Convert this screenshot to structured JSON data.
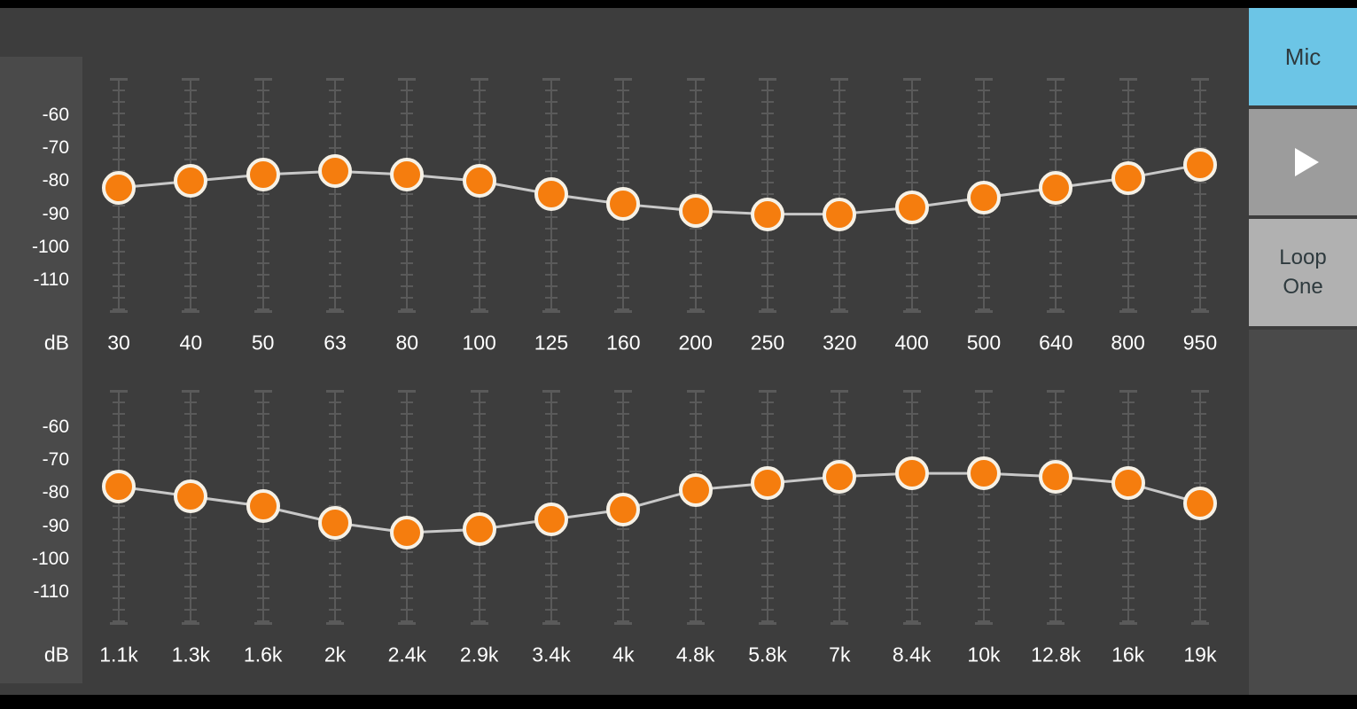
{
  "colors": {
    "background": "#3d3d3d",
    "bar": "#000000",
    "panel": "#4a4a4a",
    "track": "#5a5a5a",
    "curve": "#c8c8c8",
    "knob_fill": "#f57d0e",
    "knob_border": "#f6f1e6",
    "text": "#ffffff",
    "mic_bg": "#6cc5e6",
    "play_bg": "#9c9c9c",
    "loop_bg": "#b1b1b1",
    "btn_text": "#2e3a3e",
    "play_icon": "#ffffff"
  },
  "sidebar": {
    "mic_label": "Mic",
    "play_icon": "play-icon",
    "loop_label": "Loop One"
  },
  "axis": {
    "unit_label": "dB",
    "ticks": [
      "-60",
      "-70",
      "-80",
      "-90",
      "-100",
      "-110"
    ]
  },
  "sections": [
    {
      "name": "low-band-equalizer",
      "bands": [
        {
          "freq": "30",
          "db": -82
        },
        {
          "freq": "40",
          "db": -80
        },
        {
          "freq": "50",
          "db": -78
        },
        {
          "freq": "63",
          "db": -77
        },
        {
          "freq": "80",
          "db": -78
        },
        {
          "freq": "100",
          "db": -80
        },
        {
          "freq": "125",
          "db": -84
        },
        {
          "freq": "160",
          "db": -87
        },
        {
          "freq": "200",
          "db": -89
        },
        {
          "freq": "250",
          "db": -90
        },
        {
          "freq": "320",
          "db": -90
        },
        {
          "freq": "400",
          "db": -88
        },
        {
          "freq": "500",
          "db": -85
        },
        {
          "freq": "640",
          "db": -82
        },
        {
          "freq": "800",
          "db": -79
        },
        {
          "freq": "950",
          "db": -75
        }
      ]
    },
    {
      "name": "high-band-equalizer",
      "bands": [
        {
          "freq": "1.1k",
          "db": -78
        },
        {
          "freq": "1.3k",
          "db": -81
        },
        {
          "freq": "1.6k",
          "db": -84
        },
        {
          "freq": "2k",
          "db": -89
        },
        {
          "freq": "2.4k",
          "db": -92
        },
        {
          "freq": "2.9k",
          "db": -91
        },
        {
          "freq": "3.4k",
          "db": -88
        },
        {
          "freq": "4k",
          "db": -85
        },
        {
          "freq": "4.8k",
          "db": -79
        },
        {
          "freq": "5.8k",
          "db": -77
        },
        {
          "freq": "7k",
          "db": -75
        },
        {
          "freq": "8.4k",
          "db": -74
        },
        {
          "freq": "10k",
          "db": -74
        },
        {
          "freq": "12.8k",
          "db": -75
        },
        {
          "freq": "16k",
          "db": -77
        },
        {
          "freq": "19k",
          "db": -83
        }
      ]
    }
  ]
}
